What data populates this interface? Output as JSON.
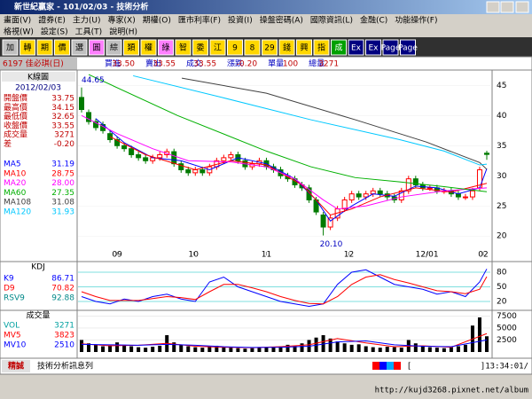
{
  "window": {
    "title": "新世紀贏家 - 101/02/03 - 技術分析"
  },
  "menu": [
    [
      "畫面(V)",
      "證券(E)",
      "主力(U)",
      "專家(X)",
      "期權(O)",
      "匯市利率(F)",
      "投資(I)",
      "操盤密碼(A)",
      "國際資訊(L)",
      "金融(C)",
      "功能操作(F)"
    ],
    [
      "格視(W)",
      "設定(S)",
      "工具(T)",
      "說明(H)"
    ]
  ],
  "toolbar": [
    "加",
    "轉",
    "期",
    "價",
    "選",
    "圓",
    "綜",
    "類",
    "權",
    "綠",
    "智",
    "委",
    "江",
    "9",
    "8",
    "29",
    "錢",
    "興",
    "指",
    "成",
    "Ex",
    "Ex",
    "Page",
    "Page"
  ],
  "quote": {
    "symbol": "6197 佳必琪(日)",
    "fields": [
      [
        "買進",
        "33.50"
      ],
      [
        "賣出",
        "33.55"
      ],
      [
        "成交",
        "33.55"
      ],
      [
        "漲跌",
        "-0.20"
      ],
      [
        "單量",
        "100"
      ],
      [
        "總量",
        "3271"
      ]
    ]
  },
  "info": {
    "header": "K線圖",
    "date": "2012/02/03",
    "rows": [
      [
        "開盤價",
        "33.75"
      ],
      [
        "最高價",
        "34.15"
      ],
      [
        "最低價",
        "32.65"
      ],
      [
        "收盤價",
        "33.55"
      ],
      [
        "成交量",
        "3271"
      ],
      [
        "差",
        "-0.20"
      ]
    ]
  },
  "chart_data": [
    {
      "type": "candlestick",
      "xlim": [
        -0.5,
        57.5
      ],
      "ylim": [
        16.8,
        47.4
      ],
      "yticks": [
        20,
        25,
        30,
        35,
        40,
        45
      ],
      "xticks": [
        {
          "value": 5,
          "label": "09"
        },
        {
          "value": 15.75,
          "label": "10"
        },
        {
          "value": 26,
          "label": "11"
        },
        {
          "value": 37.6,
          "label": "12"
        },
        {
          "value": 48.6,
          "label": "12/01"
        },
        {
          "value": 56.5,
          "label": "02"
        }
      ],
      "up_color": "#ff0000",
      "down_color": "#007a00",
      "open": [
        43,
        40.5,
        39,
        38.5,
        37,
        36,
        35,
        34.5,
        33.5,
        33,
        32.5,
        33,
        33.5,
        34,
        32,
        31,
        30.5,
        31,
        30.5,
        31.5,
        32.5,
        33,
        33.5,
        32.5,
        31.5,
        32,
        32.5,
        31.5,
        31,
        30,
        29.5,
        28.5,
        28,
        26,
        23.5,
        21.5,
        23,
        24.5,
        26,
        27,
        26.5,
        27,
        27.5,
        27,
        26.5,
        26,
        27.5,
        29.5,
        28.5,
        28,
        28,
        27.5,
        27.5,
        27,
        26.5,
        26.5,
        28,
        33.75
      ],
      "high": [
        44.65,
        41,
        39.5,
        39,
        37.5,
        36.5,
        35.5,
        35,
        34,
        33.5,
        33.5,
        34,
        34.5,
        34.5,
        32.5,
        31.5,
        31.5,
        31.5,
        32,
        33,
        33.5,
        34,
        34,
        33,
        32.5,
        33,
        33,
        32,
        31.5,
        30.5,
        30,
        29,
        28.5,
        26.5,
        24,
        23.5,
        25,
        26.5,
        27.5,
        27.5,
        27.5,
        28,
        28,
        27.5,
        27,
        28,
        30,
        30,
        29,
        28.5,
        28.5,
        28,
        28,
        27.5,
        27,
        28,
        31.5,
        34.15
      ],
      "low": [
        40.5,
        38.5,
        37.5,
        37,
        35.5,
        34.5,
        34,
        33,
        32.5,
        32,
        32,
        32.5,
        33,
        31.5,
        30.5,
        30,
        30,
        30,
        30,
        31,
        32,
        32.5,
        32,
        31,
        31,
        31.5,
        31,
        30.5,
        29.5,
        29,
        28,
        27.5,
        25.5,
        23.5,
        20.1,
        21,
        22.5,
        24,
        25.5,
        26,
        26,
        26.5,
        26.5,
        26,
        25.5,
        25.5,
        27,
        28,
        27.5,
        27.5,
        27,
        27,
        26.5,
        26,
        26,
        26,
        27.5,
        32.65
      ],
      "close": [
        41,
        39,
        38,
        37.5,
        36,
        35,
        34.5,
        33.5,
        33,
        32.5,
        33,
        33.5,
        34,
        32,
        31,
        30.5,
        31,
        30.5,
        31.5,
        32.5,
        33,
        33.5,
        32.5,
        31.5,
        32,
        32.5,
        31.5,
        31,
        30,
        29.5,
        28.5,
        28,
        26,
        24,
        21.5,
        23,
        24.5,
        26,
        27,
        26.5,
        27,
        27.5,
        27,
        26.5,
        26,
        27.5,
        29.5,
        28.5,
        28,
        28,
        27.5,
        27.5,
        27,
        26.5,
        26.5,
        27.5,
        31,
        33.55
      ],
      "annotations": [
        {
          "label": "44.65",
          "x": 0,
          "y": 44.65
        },
        {
          "label": "20.10",
          "x": 34,
          "y": 20.1
        }
      ],
      "series": [
        {
          "name": "MA5",
          "current": "31.19",
          "color": "#0000ff",
          "x": [
            2,
            6,
            10,
            14,
            18,
            22,
            26,
            30,
            33,
            35,
            38,
            41,
            44,
            47,
            50,
            53,
            56,
            57
          ],
          "values": [
            39.5,
            35.5,
            33,
            32.5,
            31,
            33,
            32,
            29.5,
            26,
            22.5,
            25,
            27,
            26.6,
            28.3,
            28,
            27,
            28,
            31.19
          ]
        },
        {
          "name": "MA10",
          "current": "28.75",
          "color": "#ff0000",
          "x": [
            4,
            9,
            16,
            21,
            26,
            31,
            35,
            38,
            42,
            47,
            52,
            57
          ],
          "values": [
            36.5,
            33.5,
            31,
            32.5,
            31.8,
            28.5,
            23.5,
            24.5,
            26.5,
            28,
            27.3,
            28.75
          ]
        },
        {
          "name": "MA20",
          "current": "28.00",
          "color": "#ff00ff",
          "x": [
            0,
            5,
            10,
            15,
            21,
            26,
            30,
            34,
            36,
            40,
            45,
            51,
            57
          ],
          "values": [
            40,
            37,
            34.5,
            32.5,
            32.3,
            31.5,
            29.5,
            26,
            24.5,
            25,
            26.5,
            27.5,
            28
          ]
        },
        {
          "name": "MA60",
          "current": "27.35",
          "color": "#00b000",
          "x": [
            1,
            13.5,
            26,
            32.25,
            38.5,
            44.75,
            51,
            57
          ],
          "values": [
            46.8,
            40,
            34.1,
            31.5,
            29.7,
            29,
            28.2,
            27.35
          ]
        },
        {
          "name": "MA108",
          "current": "31.08",
          "color": "#404040",
          "x": [
            14.1,
            26,
            38.5,
            48.5,
            56,
            57
          ],
          "values": [
            46.2,
            43.7,
            39.3,
            35.6,
            32.2,
            31.08
          ]
        },
        {
          "name": "MA120",
          "current": "31.93",
          "color": "#00c8ff",
          "x": [
            7.25,
            19.75,
            32.25,
            44.75,
            51,
            56,
            57
          ],
          "values": [
            46.6,
            43,
            39.3,
            36,
            34.1,
            31.8,
            31.93
          ]
        }
      ]
    },
    {
      "type": "line",
      "title": "KDJ",
      "xlim": [
        -0.5,
        57.5
      ],
      "ylim": [
        0,
        100
      ],
      "yticks": [
        20,
        50,
        80
      ],
      "x": [
        0,
        2,
        4,
        6,
        8,
        10,
        12,
        14,
        16,
        18,
        20,
        22,
        24,
        26,
        28,
        30,
        32,
        34,
        36,
        38,
        40,
        42,
        44,
        46,
        48,
        50,
        52,
        54,
        56,
        57
      ],
      "series": [
        {
          "name": "K9",
          "current": "86.71",
          "color": "#0000ff",
          "values": [
            30,
            20,
            15,
            25,
            20,
            30,
            35,
            25,
            20,
            60,
            70,
            50,
            40,
            30,
            20,
            15,
            10,
            15,
            55,
            80,
            85,
            70,
            55,
            50,
            45,
            35,
            40,
            30,
            60,
            86.71
          ]
        },
        {
          "name": "D9",
          "current": "70.82",
          "color": "#ff0000",
          "values": [
            40,
            30,
            22,
            22,
            22,
            26,
            30,
            28,
            24,
            40,
            55,
            55,
            48,
            40,
            30,
            22,
            16,
            15,
            30,
            55,
            70,
            75,
            65,
            58,
            50,
            42,
            40,
            36,
            45,
            70.82
          ]
        },
        {
          "name": "RSV9",
          "current": "92.88",
          "color": "#008888"
        }
      ]
    },
    {
      "type": "bar",
      "title": "成交量",
      "xlim": [
        -0.5,
        57.5
      ],
      "ylim": [
        0,
        8300
      ],
      "yticks": [
        2500,
        5000,
        7500
      ],
      "color": "#000000",
      "values": [
        2500,
        1800,
        1500,
        1200,
        1400,
        2000,
        1500,
        1200,
        1000,
        900,
        1100,
        1300,
        3500,
        2000,
        1500,
        1200,
        1000,
        900,
        1100,
        1300,
        1000,
        900,
        800,
        700,
        800,
        900,
        1000,
        1100,
        1200,
        1500,
        1300,
        1800,
        2500,
        3000,
        3500,
        2800,
        2200,
        1800,
        1500,
        1600,
        1200,
        1000,
        900,
        1100,
        1000,
        900,
        2500,
        1800,
        1200,
        1000,
        900,
        800,
        1000,
        1200,
        1500,
        5500,
        7200,
        3271
      ],
      "series": [
        {
          "name": "VOL",
          "current": "3271",
          "color": "#00a0a0"
        },
        {
          "name": "MV5",
          "current": "3823",
          "color": "#ff0000",
          "x": [
            0,
            4,
            8,
            12,
            16,
            20,
            24,
            28,
            32,
            36,
            40,
            44,
            48,
            52,
            57
          ],
          "values": [
            1700,
            1300,
            1400,
            1800,
            1200,
            1000,
            900,
            1100,
            1500,
            2800,
            1900,
            1100,
            1300,
            1000,
            3823
          ]
        },
        {
          "name": "MV10",
          "current": "2510",
          "color": "#0000ff",
          "x": [
            0,
            4,
            8,
            12,
            16,
            20,
            24,
            28,
            32,
            36,
            40,
            44,
            48,
            52,
            57
          ],
          "values": [
            1600,
            1500,
            1400,
            1600,
            1400,
            1100,
            950,
            1000,
            1200,
            2100,
            2300,
            1500,
            1200,
            1100,
            2510
          ]
        }
      ]
    }
  ],
  "status": {
    "brand": "精誠",
    "message": "技術分析訊息列",
    "bracket": "[",
    "time": "]13:34:01/"
  },
  "footer": {
    "url": "http://kujd3268.pixnet.net/album"
  }
}
